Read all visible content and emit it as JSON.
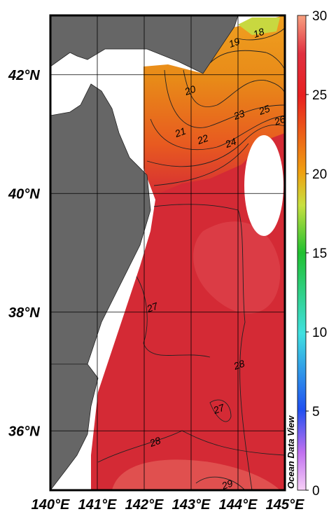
{
  "map": {
    "xlim": [
      140,
      145
    ],
    "ylim": [
      35,
      43
    ],
    "lon_ticks": [
      {
        "value": 140,
        "label": "140°E"
      },
      {
        "value": 141,
        "label": "141°E"
      },
      {
        "value": 142,
        "label": "142°E"
      },
      {
        "value": 143,
        "label": "143°E"
      },
      {
        "value": 144,
        "label": "144°E"
      },
      {
        "value": 145,
        "label": "145°E"
      }
    ],
    "lat_ticks": [
      {
        "value": 36,
        "label": "36°N"
      },
      {
        "value": 38,
        "label": "38°N"
      },
      {
        "value": 40,
        "label": "40°N"
      },
      {
        "value": 42,
        "label": "42°N"
      }
    ],
    "colorbar": {
      "lim": [
        0,
        30
      ],
      "ticks": [
        0,
        5,
        10,
        15,
        20,
        25,
        30
      ]
    },
    "contour_labels": [
      18,
      19,
      20,
      21,
      22,
      23,
      24,
      25,
      26,
      27,
      28,
      27,
      28,
      29
    ],
    "credit": "Ocean Data View"
  }
}
